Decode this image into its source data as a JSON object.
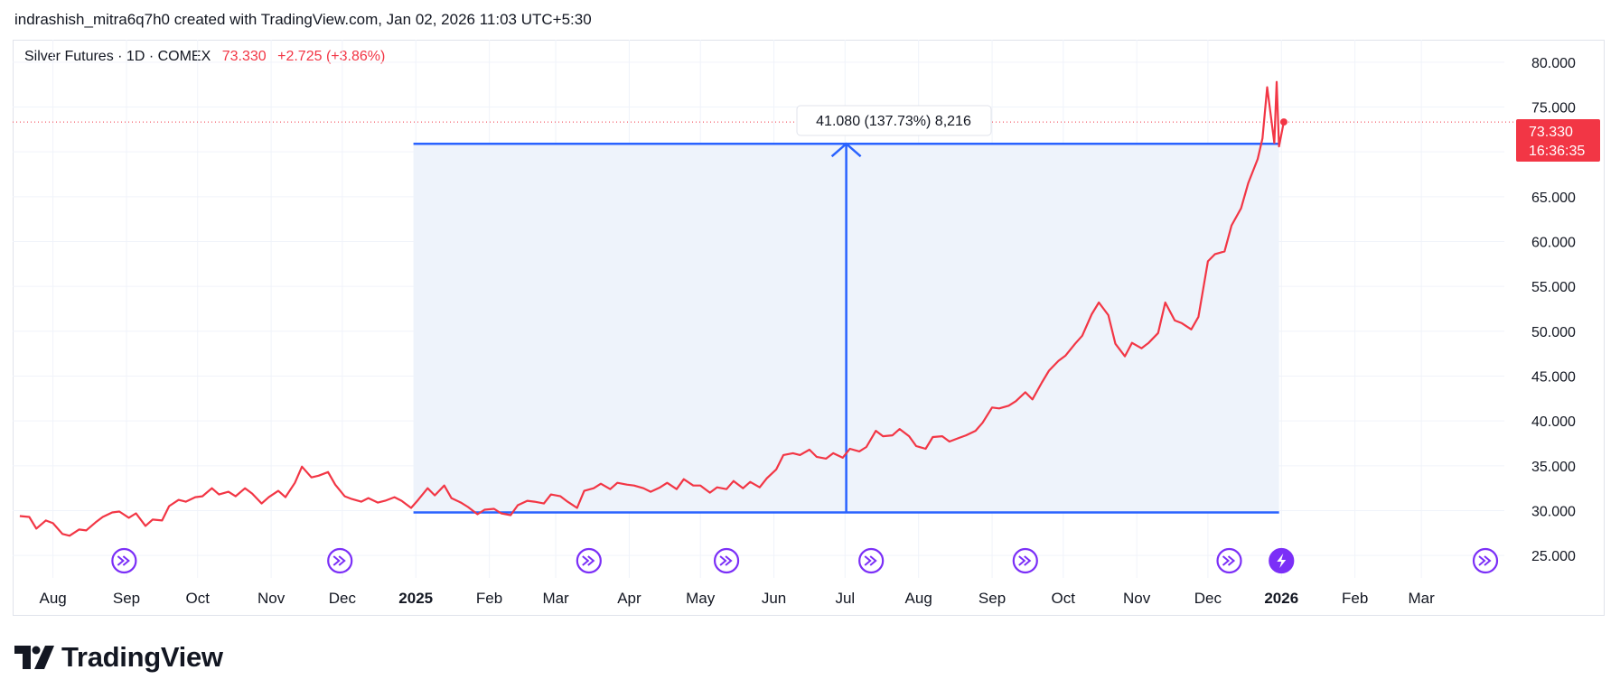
{
  "header": {
    "attribution": "indrashish_mitra6q7h0 created with TradingView.com, Jan 02, 2026 11:03 UTC+5:30"
  },
  "legend": {
    "symbol": "Silver Futures · 1D · COMEX",
    "price": "73.330",
    "change": "+2.725 (+3.86%)"
  },
  "price_tag": {
    "price": "73.330",
    "countdown": "16:36:35"
  },
  "measure": {
    "label": "41.080 (137.73%) 8,216"
  },
  "footer": {
    "brand": "TradingView"
  },
  "colors": {
    "series": "#f23645",
    "measure": "#2962ff",
    "measure_fill": "#eef3fb",
    "event_icon": "#7b2ff7",
    "grid": "#f0f3fa"
  },
  "icons": {
    "event": "fast-forward-circle-icon",
    "event_active": "lightning-circle-icon",
    "logo": "tradingview-logo-icon"
  },
  "chart_data": {
    "type": "line",
    "title": "Silver Futures · 1D · COMEX",
    "ylim": [
      22.5,
      82.5
    ],
    "y_ticks": [
      "25.000",
      "30.000",
      "35.000",
      "40.000",
      "45.000",
      "50.000",
      "55.000",
      "60.000",
      "65.000",
      "70.000",
      "75.000",
      "80.000"
    ],
    "x_ticks": [
      {
        "label": "Aug",
        "date": "2024-08-01",
        "bold": false
      },
      {
        "label": "Sep",
        "date": "2024-09-01",
        "bold": false
      },
      {
        "label": "Oct",
        "date": "2024-10-01",
        "bold": false
      },
      {
        "label": "Nov",
        "date": "2024-11-01",
        "bold": false
      },
      {
        "label": "Dec",
        "date": "2024-12-01",
        "bold": false
      },
      {
        "label": "2025",
        "date": "2025-01-01",
        "bold": true
      },
      {
        "label": "Feb",
        "date": "2025-02-01",
        "bold": false
      },
      {
        "label": "Mar",
        "date": "2025-03-01",
        "bold": false
      },
      {
        "label": "Apr",
        "date": "2025-04-01",
        "bold": false
      },
      {
        "label": "May",
        "date": "2025-05-01",
        "bold": false
      },
      {
        "label": "Jun",
        "date": "2025-06-01",
        "bold": false
      },
      {
        "label": "Jul",
        "date": "2025-07-01",
        "bold": false
      },
      {
        "label": "Aug",
        "date": "2025-08-01",
        "bold": false
      },
      {
        "label": "Sep",
        "date": "2025-09-01",
        "bold": false
      },
      {
        "label": "Oct",
        "date": "2025-10-01",
        "bold": false
      },
      {
        "label": "Nov",
        "date": "2025-11-01",
        "bold": false
      },
      {
        "label": "Dec",
        "date": "2025-12-01",
        "bold": false
      },
      {
        "label": "2026",
        "date": "2026-01-01",
        "bold": true
      },
      {
        "label": "Feb",
        "date": "2026-02-01",
        "bold": false
      },
      {
        "label": "Mar",
        "date": "2026-03-01",
        "bold": false
      }
    ],
    "series": [
      {
        "name": "Silver Futures",
        "points": [
          [
            "2024-07-18",
            29.4
          ],
          [
            "2024-07-22",
            29.3
          ],
          [
            "2024-07-25",
            28.0
          ],
          [
            "2024-07-29",
            28.9
          ],
          [
            "2024-08-01",
            28.6
          ],
          [
            "2024-08-05",
            27.4
          ],
          [
            "2024-08-08",
            27.2
          ],
          [
            "2024-08-12",
            27.9
          ],
          [
            "2024-08-15",
            27.8
          ],
          [
            "2024-08-19",
            28.7
          ],
          [
            "2024-08-22",
            29.3
          ],
          [
            "2024-08-26",
            29.8
          ],
          [
            "2024-08-29",
            29.9
          ],
          [
            "2024-09-02",
            29.2
          ],
          [
            "2024-09-05",
            29.7
          ],
          [
            "2024-09-09",
            28.3
          ],
          [
            "2024-09-12",
            29.0
          ],
          [
            "2024-09-16",
            28.9
          ],
          [
            "2024-09-19",
            30.5
          ],
          [
            "2024-09-23",
            31.2
          ],
          [
            "2024-09-26",
            31.0
          ],
          [
            "2024-09-30",
            31.5
          ],
          [
            "2024-10-03",
            31.6
          ],
          [
            "2024-10-07",
            32.5
          ],
          [
            "2024-10-10",
            31.8
          ],
          [
            "2024-10-14",
            32.1
          ],
          [
            "2024-10-17",
            31.6
          ],
          [
            "2024-10-21",
            32.5
          ],
          [
            "2024-10-24",
            31.9
          ],
          [
            "2024-10-28",
            30.8
          ],
          [
            "2024-10-31",
            31.5
          ],
          [
            "2024-11-04",
            32.2
          ],
          [
            "2024-11-07",
            31.5
          ],
          [
            "2024-11-11",
            33.1
          ],
          [
            "2024-11-14",
            34.9
          ],
          [
            "2024-11-18",
            33.7
          ],
          [
            "2024-11-21",
            33.9
          ],
          [
            "2024-11-25",
            34.3
          ],
          [
            "2024-11-28",
            32.9
          ],
          [
            "2024-12-02",
            31.6
          ],
          [
            "2024-12-05",
            31.3
          ],
          [
            "2024-12-09",
            31.0
          ],
          [
            "2024-12-12",
            31.4
          ],
          [
            "2024-12-16",
            30.9
          ],
          [
            "2024-12-19",
            31.1
          ],
          [
            "2024-12-23",
            31.5
          ],
          [
            "2024-12-26",
            31.1
          ],
          [
            "2024-12-30",
            30.3
          ],
          [
            "2025-01-02",
            31.2
          ],
          [
            "2025-01-06",
            32.5
          ],
          [
            "2025-01-09",
            31.7
          ],
          [
            "2025-01-13",
            32.8
          ],
          [
            "2025-01-16",
            31.4
          ],
          [
            "2025-01-20",
            30.9
          ],
          [
            "2025-01-23",
            30.4
          ],
          [
            "2025-01-27",
            29.6
          ],
          [
            "2025-01-30",
            30.1
          ],
          [
            "2025-02-03",
            30.2
          ],
          [
            "2025-02-06",
            29.7
          ],
          [
            "2025-02-10",
            29.5
          ],
          [
            "2025-02-13",
            30.6
          ],
          [
            "2025-02-17",
            31.1
          ],
          [
            "2025-02-20",
            31.0
          ],
          [
            "2025-02-24",
            30.8
          ],
          [
            "2025-02-27",
            31.8
          ],
          [
            "2025-03-03",
            31.6
          ],
          [
            "2025-03-06",
            31.0
          ],
          [
            "2025-03-10",
            30.3
          ],
          [
            "2025-03-13",
            32.2
          ],
          [
            "2025-03-17",
            32.5
          ],
          [
            "2025-03-20",
            33.0
          ],
          [
            "2025-03-24",
            32.4
          ],
          [
            "2025-03-27",
            33.1
          ],
          [
            "2025-03-31",
            32.9
          ],
          [
            "2025-04-03",
            32.8
          ],
          [
            "2025-04-07",
            32.5
          ],
          [
            "2025-04-10",
            32.1
          ],
          [
            "2025-04-14",
            32.6
          ],
          [
            "2025-04-17",
            33.1
          ],
          [
            "2025-04-21",
            32.4
          ],
          [
            "2025-04-24",
            33.5
          ],
          [
            "2025-04-28",
            32.8
          ],
          [
            "2025-05-01",
            32.8
          ],
          [
            "2025-05-05",
            32.0
          ],
          [
            "2025-05-08",
            32.6
          ],
          [
            "2025-05-12",
            32.4
          ],
          [
            "2025-05-15",
            33.3
          ],
          [
            "2025-05-19",
            32.5
          ],
          [
            "2025-05-22",
            33.2
          ],
          [
            "2025-05-26",
            32.6
          ],
          [
            "2025-05-29",
            33.6
          ],
          [
            "2025-06-02",
            34.6
          ],
          [
            "2025-06-05",
            36.2
          ],
          [
            "2025-06-09",
            36.4
          ],
          [
            "2025-06-12",
            36.2
          ],
          [
            "2025-06-16",
            36.8
          ],
          [
            "2025-06-19",
            36.0
          ],
          [
            "2025-06-23",
            35.8
          ],
          [
            "2025-06-26",
            36.4
          ],
          [
            "2025-06-30",
            35.9
          ],
          [
            "2025-07-03",
            36.9
          ],
          [
            "2025-07-07",
            36.6
          ],
          [
            "2025-07-10",
            37.1
          ],
          [
            "2025-07-14",
            38.9
          ],
          [
            "2025-07-17",
            38.3
          ],
          [
            "2025-07-21",
            38.4
          ],
          [
            "2025-07-24",
            39.1
          ],
          [
            "2025-07-28",
            38.3
          ],
          [
            "2025-07-31",
            37.2
          ],
          [
            "2025-08-04",
            36.9
          ],
          [
            "2025-08-07",
            38.2
          ],
          [
            "2025-08-11",
            38.3
          ],
          [
            "2025-08-14",
            37.7
          ],
          [
            "2025-08-18",
            38.1
          ],
          [
            "2025-08-21",
            38.4
          ],
          [
            "2025-08-25",
            38.9
          ],
          [
            "2025-08-28",
            39.8
          ],
          [
            "2025-09-01",
            41.5
          ],
          [
            "2025-09-04",
            41.4
          ],
          [
            "2025-09-08",
            41.7
          ],
          [
            "2025-09-11",
            42.2
          ],
          [
            "2025-09-15",
            43.2
          ],
          [
            "2025-09-18",
            42.4
          ],
          [
            "2025-09-22",
            44.3
          ],
          [
            "2025-09-25",
            45.6
          ],
          [
            "2025-09-29",
            46.7
          ],
          [
            "2025-10-02",
            47.3
          ],
          [
            "2025-10-06",
            48.6
          ],
          [
            "2025-10-09",
            49.5
          ],
          [
            "2025-10-13",
            51.9
          ],
          [
            "2025-10-16",
            53.2
          ],
          [
            "2025-10-20",
            51.8
          ],
          [
            "2025-10-23",
            48.6
          ],
          [
            "2025-10-27",
            47.2
          ],
          [
            "2025-10-30",
            48.7
          ],
          [
            "2025-11-03",
            48.1
          ],
          [
            "2025-11-06",
            48.7
          ],
          [
            "2025-11-10",
            49.8
          ],
          [
            "2025-11-13",
            53.2
          ],
          [
            "2025-11-17",
            51.2
          ],
          [
            "2025-11-20",
            50.9
          ],
          [
            "2025-11-24",
            50.2
          ],
          [
            "2025-11-27",
            51.6
          ],
          [
            "2025-12-01",
            57.8
          ],
          [
            "2025-12-04",
            58.6
          ],
          [
            "2025-12-08",
            58.9
          ],
          [
            "2025-12-11",
            61.8
          ],
          [
            "2025-12-15",
            63.7
          ],
          [
            "2025-12-18",
            66.5
          ],
          [
            "2025-12-22",
            69.2
          ],
          [
            "2025-12-24",
            71.5
          ],
          [
            "2025-12-26",
            77.2
          ],
          [
            "2025-12-29",
            71.0
          ],
          [
            "2025-12-30",
            77.8
          ],
          [
            "2025-12-31",
            70.6
          ],
          [
            "2026-01-02",
            73.33
          ]
        ]
      }
    ],
    "last_price": 73.33,
    "measure_range": {
      "start_date": "2024-12-31",
      "end_date": "2025-12-31",
      "low": 29.8,
      "high": 70.9,
      "change": "41.080",
      "percent": "137.73%",
      "bars": "8,216"
    },
    "event_markers": [
      {
        "date": "2024-08-31",
        "icon": "fast-forward-circle-icon"
      },
      {
        "date": "2024-11-30",
        "icon": "fast-forward-circle-icon"
      },
      {
        "date": "2025-03-15",
        "icon": "fast-forward-circle-icon"
      },
      {
        "date": "2025-05-12",
        "icon": "fast-forward-circle-icon"
      },
      {
        "date": "2025-07-12",
        "icon": "fast-forward-circle-icon"
      },
      {
        "date": "2025-09-15",
        "icon": "fast-forward-circle-icon"
      },
      {
        "date": "2025-12-10",
        "icon": "fast-forward-circle-icon"
      },
      {
        "date": "2026-01-01",
        "icon": "lightning-circle-icon"
      },
      {
        "date": "2026-03-28",
        "icon": "fast-forward-circle-icon"
      }
    ]
  }
}
